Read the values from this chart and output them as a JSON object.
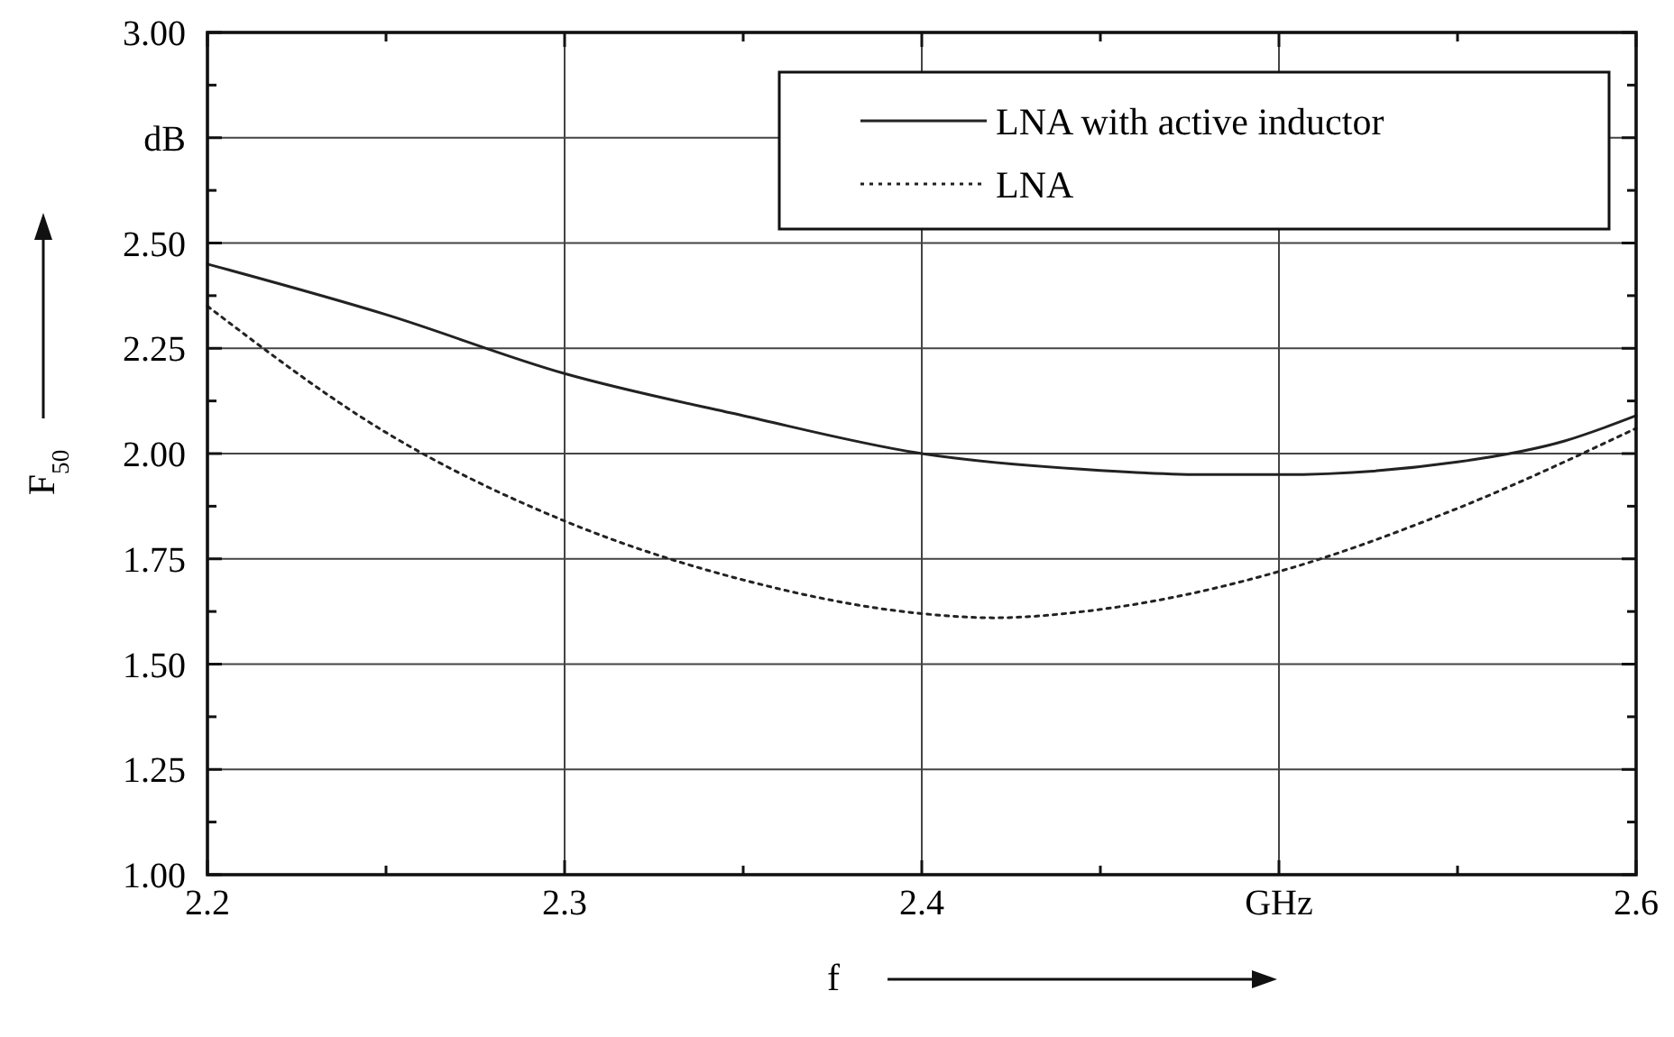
{
  "chart_data": {
    "type": "line",
    "xlabel": "f",
    "ylabel": "F$_{50}$",
    "xlim": [
      2.2,
      2.6
    ],
    "ylim": [
      1.0,
      3.0
    ],
    "xticks": [
      2.2,
      {
        "value": 2.25,
        "label": null
      },
      2.3,
      {
        "value": 2.35,
        "label": null
      },
      2.4,
      {
        "value": 2.45,
        "label": null
      },
      {
        "value": 2.5,
        "label": "GHz"
      },
      {
        "value": 2.55,
        "label": null
      },
      2.6
    ],
    "yticks": [
      {
        "value": 1.0,
        "label": "1.00"
      },
      {
        "value": 1.125,
        "label": null
      },
      1.25,
      {
        "value": 1.375,
        "label": null
      },
      {
        "value": 1.5,
        "label": "1.50"
      },
      {
        "value": 1.625,
        "label": null
      },
      1.75,
      {
        "value": 1.875,
        "label": null
      },
      {
        "value": 2.0,
        "label": "2.00"
      },
      {
        "value": 2.125,
        "label": null
      },
      2.25,
      {
        "value": 2.375,
        "label": null
      },
      {
        "value": 2.5,
        "label": "2.50"
      },
      {
        "value": 2.625,
        "label": null
      },
      {
        "value": 2.75,
        "label": "dB"
      },
      {
        "value": 2.875,
        "label": null
      },
      {
        "value": 3.0,
        "label": "3.00"
      }
    ],
    "grid": true,
    "legend": "top right",
    "series": [
      {
        "name": "LNA with active inductor",
        "color": "#222222",
        "line_style": "solid",
        "x": [
          2.2,
          2.25,
          2.3,
          2.35,
          2.4,
          2.45,
          2.48,
          2.5,
          2.55,
          2.58,
          2.6
        ],
        "values": [
          2.45,
          2.33,
          2.19,
          2.09,
          2.0,
          1.96,
          1.95,
          1.95,
          1.98,
          2.03,
          2.09
        ]
      },
      {
        "name": "LNA",
        "color": "#222222",
        "line_style": "dotted",
        "x": [
          2.2,
          2.25,
          2.3,
          2.35,
          2.4,
          2.42,
          2.45,
          2.5,
          2.55,
          2.6
        ],
        "values": [
          2.35,
          2.05,
          1.84,
          1.7,
          1.62,
          1.61,
          1.63,
          1.72,
          1.87,
          2.06
        ]
      }
    ]
  }
}
